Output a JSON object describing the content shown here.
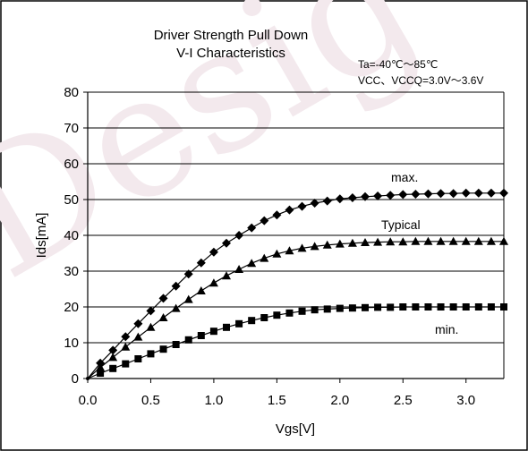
{
  "chart_data": {
    "type": "line",
    "title": "Driver Strength Pull Down",
    "subtitle": "V-I Characteristics",
    "conditions": [
      "Ta=-40℃～85℃",
      "VCC、VCCQ=3.0V～3.6V"
    ],
    "xlabel": "Vgs[V]",
    "ylabel": "Ids[mA]",
    "xlim": [
      0,
      3.3
    ],
    "ylim": [
      0,
      80
    ],
    "x_ticks": [
      "0.0",
      "0.5",
      "1.0",
      "1.5",
      "2.0",
      "2.5",
      "3.0"
    ],
    "x_tick_values": [
      0,
      0.5,
      1.0,
      1.5,
      2.0,
      2.5,
      3.0
    ],
    "y_ticks": [
      "0",
      "10",
      "20",
      "30",
      "40",
      "50",
      "60",
      "70",
      "80"
    ],
    "y_tick_values": [
      0,
      10,
      20,
      30,
      40,
      50,
      60,
      70,
      80
    ],
    "grid": "horizontal",
    "x": [
      0.0,
      0.1,
      0.2,
      0.3,
      0.4,
      0.5,
      0.6,
      0.7,
      0.8,
      0.9,
      1.0,
      1.1,
      1.2,
      1.3,
      1.4,
      1.5,
      1.6,
      1.7,
      1.8,
      1.9,
      2.0,
      2.1,
      2.2,
      2.3,
      2.4,
      2.5,
      2.6,
      2.7,
      2.8,
      2.9,
      3.0,
      3.1,
      3.2,
      3.3
    ],
    "series": [
      {
        "name": "max.",
        "marker": "diamond",
        "values": [
          0,
          4.3,
          7.9,
          11.7,
          15.3,
          18.9,
          22.4,
          25.8,
          29.2,
          32.3,
          35.3,
          37.8,
          40.0,
          42.1,
          44.1,
          45.7,
          47.1,
          48.1,
          49.0,
          49.6,
          50.2,
          50.5,
          50.8,
          51.0,
          51.2,
          51.4,
          51.5,
          51.6,
          51.7,
          51.7,
          51.8,
          51.8,
          51.8,
          51.8
        ]
      },
      {
        "name": "Typical",
        "marker": "triangle",
        "values": [
          0,
          3.1,
          5.9,
          8.8,
          11.6,
          14.3,
          17.0,
          19.6,
          22.1,
          24.5,
          26.7,
          28.7,
          30.5,
          32.2,
          33.6,
          34.8,
          35.7,
          36.4,
          36.9,
          37.3,
          37.6,
          37.8,
          38.0,
          38.1,
          38.2,
          38.2,
          38.3,
          38.3,
          38.3,
          38.3,
          38.3,
          38.3,
          38.3,
          38.3
        ]
      },
      {
        "name": "min.",
        "marker": "square",
        "values": [
          0,
          1.5,
          2.8,
          4.1,
          5.5,
          6.9,
          8.2,
          9.5,
          10.8,
          12.0,
          13.2,
          14.3,
          15.3,
          16.2,
          17.0,
          17.7,
          18.3,
          18.8,
          19.2,
          19.4,
          19.6,
          19.7,
          19.8,
          19.9,
          19.9,
          20.0,
          20.0,
          20.0,
          20.0,
          20.0,
          20.0,
          20.0,
          20.0,
          20.0
        ]
      }
    ],
    "watermark": "Desig",
    "colors": {
      "line": "#000000",
      "grid": "#000000",
      "frame": "#000000",
      "watermark": "#f2e8ec"
    }
  }
}
